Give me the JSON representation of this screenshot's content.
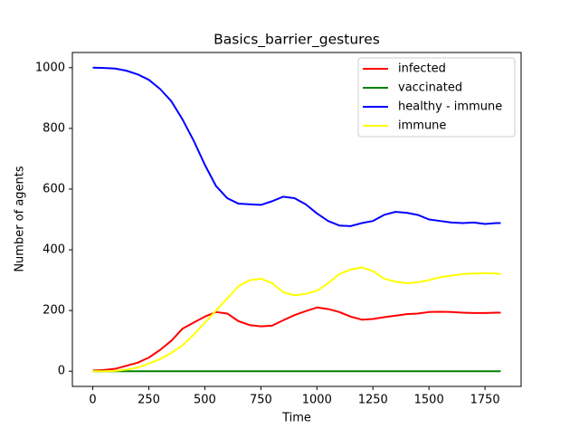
{
  "chart_data": {
    "type": "line",
    "title": "Basics_barrier_gestures",
    "x_label": "Time",
    "y_label": "Number of agents",
    "x": [
      0,
      50,
      100,
      150,
      200,
      250,
      300,
      350,
      400,
      450,
      500,
      550,
      600,
      650,
      700,
      750,
      800,
      850,
      900,
      950,
      1000,
      1050,
      1100,
      1150,
      1200,
      1250,
      1300,
      1350,
      1400,
      1450,
      1500,
      1550,
      1600,
      1650,
      1700,
      1750,
      1800,
      1820
    ],
    "series": [
      {
        "name": "infected",
        "color": "#ff0000",
        "values": [
          2,
          4,
          8,
          18,
          28,
          45,
          70,
          100,
          140,
          160,
          180,
          195,
          190,
          165,
          152,
          148,
          150,
          168,
          185,
          198,
          210,
          205,
          195,
          180,
          170,
          172,
          178,
          183,
          188,
          190,
          195,
          196,
          195,
          193,
          192,
          192,
          193,
          193
        ]
      },
      {
        "name": "vaccinated",
        "color": "#008000",
        "values": [
          0,
          0,
          0,
          0,
          0,
          0,
          0,
          0,
          0,
          0,
          0,
          0,
          0,
          0,
          0,
          0,
          0,
          0,
          0,
          0,
          0,
          0,
          0,
          0,
          0,
          0,
          0,
          0,
          0,
          0,
          0,
          0,
          0,
          0,
          0,
          0,
          0,
          0
        ]
      },
      {
        "name": "healthy - immune",
        "color": "#0000ff",
        "values": [
          1000,
          999,
          997,
          990,
          978,
          960,
          930,
          890,
          830,
          760,
          680,
          610,
          570,
          552,
          550,
          548,
          560,
          575,
          570,
          550,
          520,
          495,
          480,
          478,
          488,
          495,
          515,
          525,
          522,
          515,
          500,
          495,
          490,
          488,
          490,
          485,
          488,
          488
        ]
      },
      {
        "name": "immune",
        "color": "#ffff00",
        "values": [
          0,
          0,
          1,
          5,
          12,
          25,
          40,
          60,
          85,
          120,
          160,
          200,
          240,
          280,
          300,
          305,
          290,
          260,
          250,
          255,
          265,
          290,
          320,
          335,
          342,
          330,
          305,
          295,
          290,
          293,
          300,
          310,
          315,
          320,
          322,
          323,
          322,
          320
        ]
      }
    ],
    "xlim": [
      -91,
      1911
    ],
    "ylim": [
      -50,
      1050
    ],
    "xticks": [
      0,
      250,
      500,
      750,
      1000,
      1250,
      1500,
      1750
    ],
    "yticks": [
      0,
      200,
      400,
      600,
      800,
      1000
    ],
    "legend": "upper right"
  }
}
